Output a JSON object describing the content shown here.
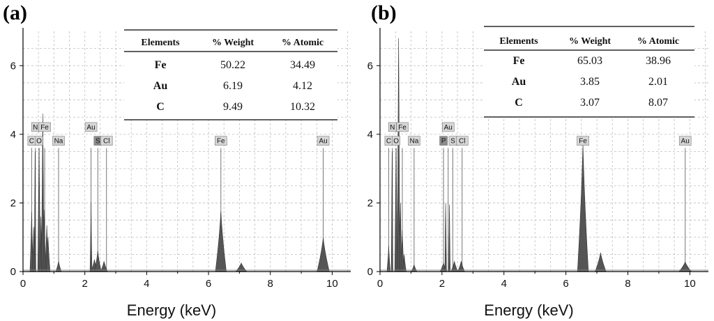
{
  "colors": {
    "spectrum": "#555555",
    "grid": "#bdbdbd",
    "label_box": "#d6d6d6",
    "label_box_dark": "#8c8c8c"
  },
  "table_headers": [
    "Elements",
    "% Weight",
    "% Atomic"
  ],
  "chart_data": [
    {
      "type": "area",
      "panel_label": "(a)",
      "xlabel": "Energy (keV)",
      "ylabel": "",
      "xlim": [
        0,
        10.6
      ],
      "ylim": [
        0,
        7
      ],
      "x_ticks": [
        0,
        2,
        4,
        6,
        8,
        10
      ],
      "y_ticks": [
        0,
        2,
        4,
        6
      ],
      "grid": true,
      "peaks": [
        {
          "x": 0.28,
          "y": 1.75,
          "w": 0.025
        },
        {
          "x": 0.35,
          "y": 1.3,
          "w": 0.025
        },
        {
          "x": 0.39,
          "y": 3.5,
          "w": 0.012
        },
        {
          "x": 0.52,
          "y": 3.6,
          "w": 0.02
        },
        {
          "x": 0.58,
          "y": 1.6,
          "w": 0.02
        },
        {
          "x": 0.64,
          "y": 4.6,
          "w": 0.02
        },
        {
          "x": 0.69,
          "y": 1.8,
          "w": 0.02
        },
        {
          "x": 0.77,
          "y": 1.35,
          "w": 0.03
        },
        {
          "x": 0.81,
          "y": 1.0,
          "w": 0.03
        },
        {
          "x": 1.15,
          "y": 0.3,
          "w": 0.04
        },
        {
          "x": 2.2,
          "y": 2.0,
          "w": 0.015
        },
        {
          "x": 2.31,
          "y": 0.35,
          "w": 0.05
        },
        {
          "x": 2.42,
          "y": 0.6,
          "w": 0.05
        },
        {
          "x": 2.62,
          "y": 0.3,
          "w": 0.05
        },
        {
          "x": 6.4,
          "y": 1.75,
          "w": 0.08
        },
        {
          "x": 7.06,
          "y": 0.25,
          "w": 0.08
        },
        {
          "x": 9.71,
          "y": 0.98,
          "w": 0.09
        }
      ],
      "element_markers": [
        {
          "label": "C",
          "x": 0.28,
          "line_top": 3.6,
          "row": 1,
          "dark": false
        },
        {
          "label": "O",
          "x": 0.52,
          "line_top": 3.6,
          "row": 1,
          "dark": false
        },
        {
          "label": "N",
          "x": 0.4,
          "line_top": 3.6,
          "row": 0,
          "dark": false
        },
        {
          "label": "Fe",
          "x": 0.7,
          "line_top": 3.6,
          "row": 0,
          "dark": false
        },
        {
          "label": "Na",
          "x": 1.15,
          "line_top": 3.6,
          "row": 1,
          "dark": false
        },
        {
          "label": "Au",
          "x": 2.2,
          "line_top": 3.6,
          "row": 0,
          "dark": false
        },
        {
          "label": "S",
          "x": 2.42,
          "line_top": 3.6,
          "row": 1,
          "dark": true
        },
        {
          "label": "Cl",
          "x": 2.7,
          "line_top": 3.6,
          "row": 1,
          "dark": false
        },
        {
          "label": "Fe",
          "x": 6.4,
          "line_top": 3.6,
          "row": 1,
          "dark": false
        },
        {
          "label": "Au",
          "x": 9.71,
          "line_top": 3.6,
          "row": 1,
          "dark": false
        }
      ],
      "table": [
        {
          "element": "Fe",
          "weight": "50.22",
          "atomic": "34.49"
        },
        {
          "element": "Au",
          "weight": "6.19",
          "atomic": "4.12"
        },
        {
          "element": "C",
          "weight": "9.49",
          "atomic": "10.32"
        }
      ]
    },
    {
      "type": "area",
      "panel_label": "(b)",
      "xlabel": "Energy (keV)",
      "ylabel": "",
      "xlim": [
        0,
        10.6
      ],
      "ylim": [
        0,
        7
      ],
      "x_ticks": [
        0,
        2,
        4,
        6,
        8,
        10
      ],
      "y_ticks": [
        0,
        2,
        4,
        6
      ],
      "grid": true,
      "peaks": [
        {
          "x": 0.28,
          "y": 0.75,
          "w": 0.025
        },
        {
          "x": 0.39,
          "y": 3.5,
          "w": 0.012
        },
        {
          "x": 0.52,
          "y": 3.6,
          "w": 0.02
        },
        {
          "x": 0.6,
          "y": 6.8,
          "w": 0.02
        },
        {
          "x": 0.66,
          "y": 2.0,
          "w": 0.02
        },
        {
          "x": 0.72,
          "y": 1.2,
          "w": 0.025
        },
        {
          "x": 0.78,
          "y": 0.5,
          "w": 0.03
        },
        {
          "x": 1.1,
          "y": 0.2,
          "w": 0.04
        },
        {
          "x": 2.05,
          "y": 0.25,
          "w": 0.05
        },
        {
          "x": 2.12,
          "y": 2.0,
          "w": 0.012
        },
        {
          "x": 2.24,
          "y": 1.95,
          "w": 0.012
        },
        {
          "x": 2.4,
          "y": 0.3,
          "w": 0.05
        },
        {
          "x": 2.62,
          "y": 0.3,
          "w": 0.05
        },
        {
          "x": 6.55,
          "y": 3.7,
          "w": 0.08
        },
        {
          "x": 7.12,
          "y": 0.55,
          "w": 0.08
        },
        {
          "x": 9.85,
          "y": 0.28,
          "w": 0.09
        }
      ],
      "element_markers": [
        {
          "label": "C",
          "x": 0.28,
          "line_top": 3.6,
          "row": 1,
          "dark": false
        },
        {
          "label": "O",
          "x": 0.52,
          "line_top": 3.6,
          "row": 1,
          "dark": false
        },
        {
          "label": "N",
          "x": 0.4,
          "line_top": 3.6,
          "row": 0,
          "dark": false
        },
        {
          "label": "Fe",
          "x": 0.72,
          "line_top": 3.6,
          "row": 0,
          "dark": false
        },
        {
          "label": "Na",
          "x": 1.1,
          "line_top": 3.6,
          "row": 1,
          "dark": false
        },
        {
          "label": "Au",
          "x": 2.2,
          "line_top": 3.6,
          "row": 0,
          "dark": false
        },
        {
          "label": "P",
          "x": 2.05,
          "line_top": 3.6,
          "row": 1,
          "dark": true
        },
        {
          "label": "S",
          "x": 2.35,
          "line_top": 3.6,
          "row": 1,
          "dark": false
        },
        {
          "label": "Cl",
          "x": 2.65,
          "line_top": 3.6,
          "row": 1,
          "dark": false
        },
        {
          "label": "Fe",
          "x": 6.55,
          "line_top": 3.6,
          "row": 1,
          "dark": false
        },
        {
          "label": "Au",
          "x": 9.85,
          "line_top": 3.6,
          "row": 1,
          "dark": false
        }
      ],
      "table": [
        {
          "element": "Fe",
          "weight": "65.03",
          "atomic": "38.96"
        },
        {
          "element": "Au",
          "weight": "3.85",
          "atomic": "2.01"
        },
        {
          "element": "C",
          "weight": "3.07",
          "atomic": "8.07"
        }
      ]
    }
  ]
}
